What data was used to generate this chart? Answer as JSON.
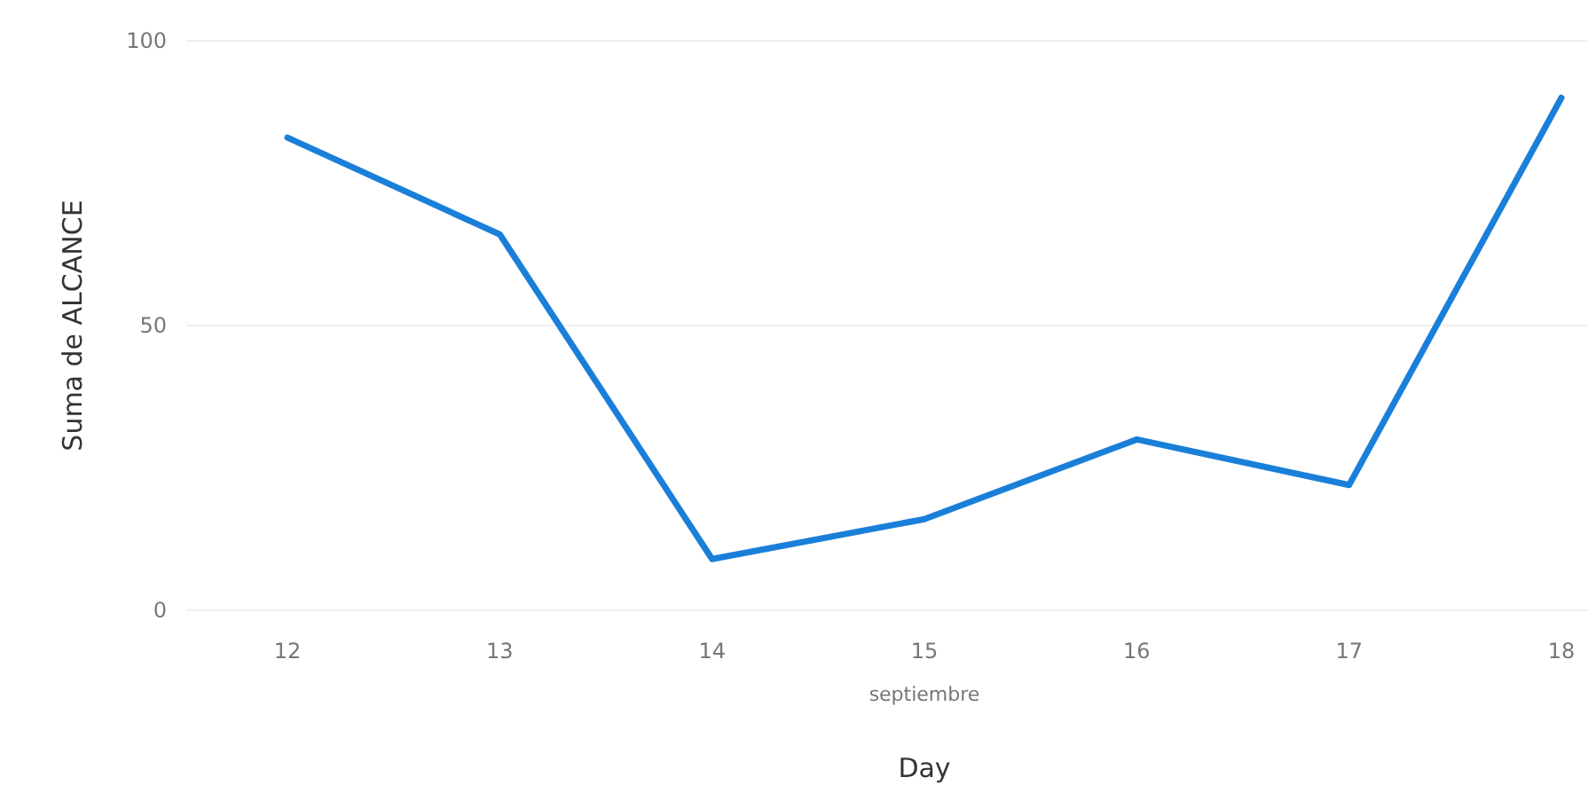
{
  "chart_data": {
    "type": "line",
    "xlabel": "Day",
    "ylabel": "Suma de ALCANCE",
    "categories": [
      "12",
      "13",
      "14",
      "15",
      "16",
      "17",
      "18"
    ],
    "series": [
      {
        "color": "#1a7fd9",
        "values": [
          83,
          66,
          9,
          16,
          30,
          22,
          90
        ]
      }
    ],
    "ylim": [
      0,
      100
    ],
    "yticks": [
      0,
      50,
      100
    ],
    "grid": "y",
    "annotations": [
      "septiembre"
    ]
  }
}
